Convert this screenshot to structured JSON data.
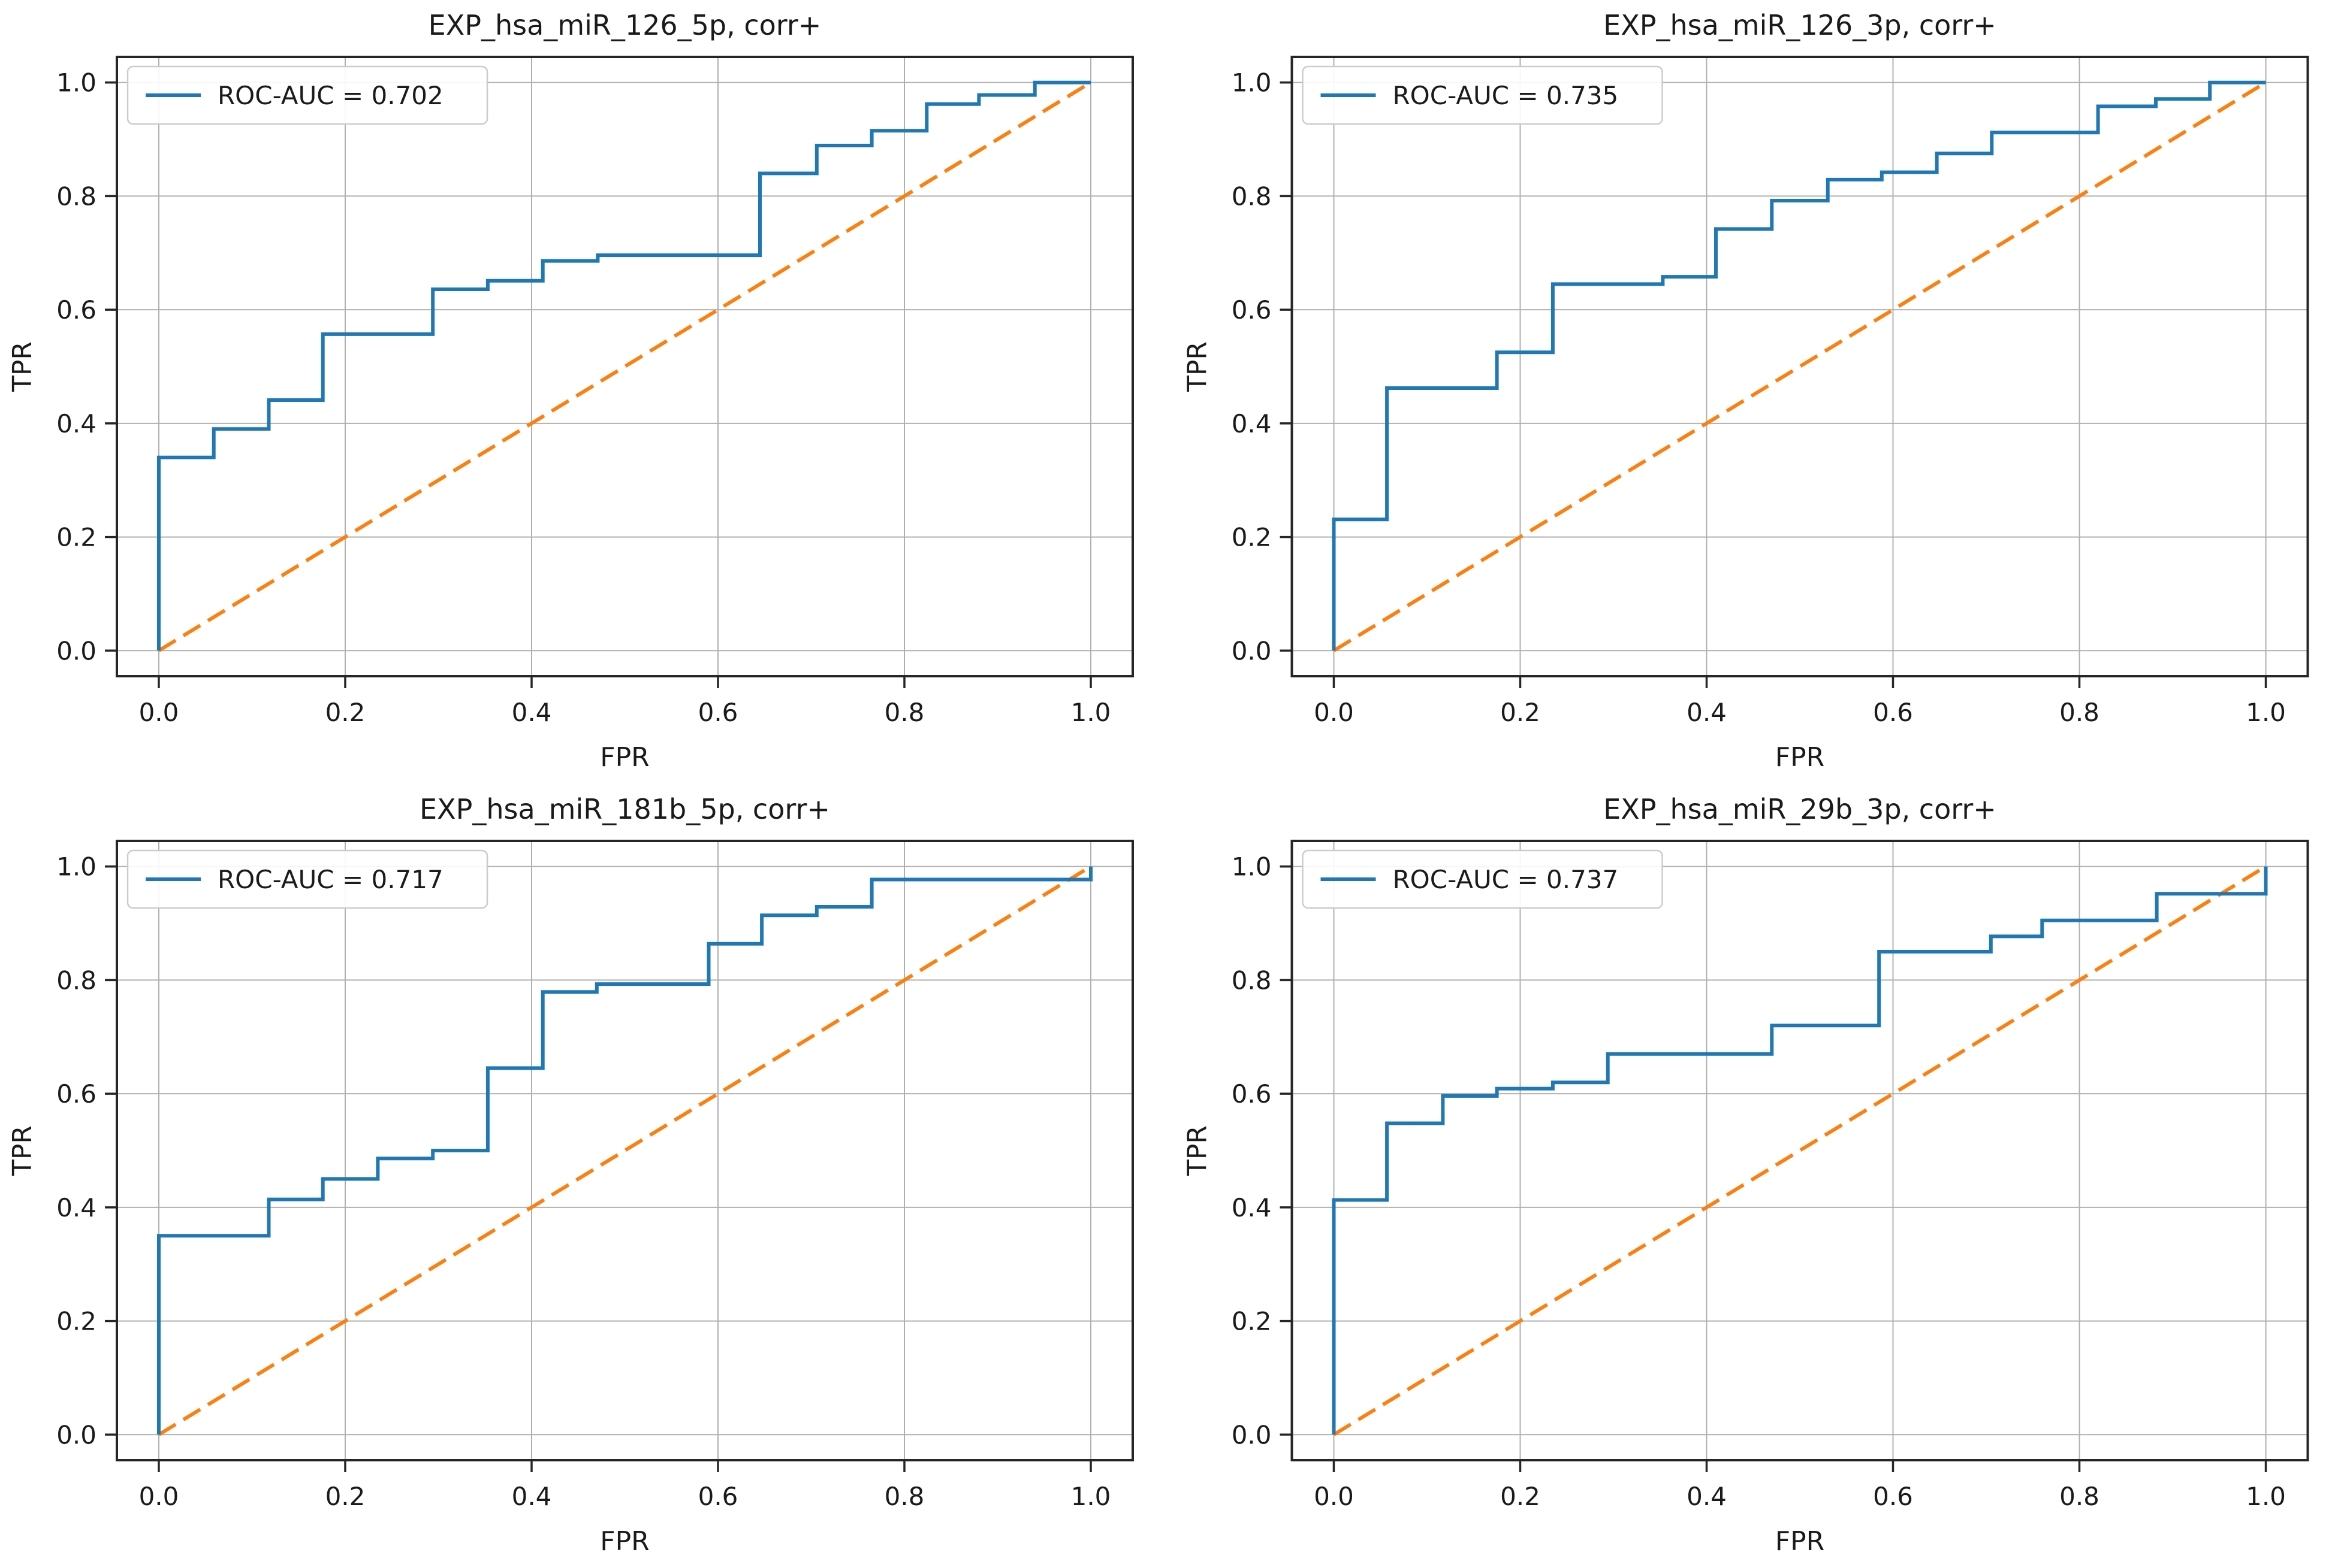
{
  "figure": {
    "background": "#ffffff",
    "grid_rows": 2,
    "grid_cols": 2
  },
  "colors": {
    "roc_curve": "#1f77b4",
    "chance_line": "#ff7f0e",
    "grid_line": "#b0b0b0",
    "spine": "#262626",
    "tick": "#262626",
    "text": "#1a1a1a",
    "legend_border": "#cccccc",
    "legend_background": "#ffffff"
  },
  "axes": {
    "xlabel": "FPR",
    "ylabel": "TPR",
    "xlim": [
      -0.045,
      1.045
    ],
    "ylim": [
      -0.045,
      1.045
    ],
    "x_ticks": [
      0,
      0.2,
      0.4,
      0.6,
      0.8,
      1
    ],
    "y_ticks": [
      0,
      0.2,
      0.4,
      0.6,
      0.8,
      1
    ],
    "x_tick_labels": [
      "0.0",
      "0.2",
      "0.4",
      "0.6",
      "0.8",
      "1.0"
    ],
    "y_tick_labels": [
      "0.0",
      "0.2",
      "0.4",
      "0.6",
      "0.8",
      "1.0"
    ],
    "grid": true
  },
  "chart_data": [
    {
      "type": "line",
      "subtype": "roc_step",
      "title": "EXP_hsa_miR_126_5p, corr+",
      "xlabel": "FPR",
      "ylabel": "TPR",
      "xlim": [
        0,
        1
      ],
      "ylim": [
        0,
        1
      ],
      "grid": true,
      "legend_position": "upper left",
      "auc": 0.702,
      "series": [
        {
          "name": "ROC-AUC = 0.702",
          "color": "#1f77b4",
          "line_style": "solid",
          "in_legend": true,
          "points": [
            [
              0,
              0
            ],
            [
              0,
              0.34
            ],
            [
              0.059,
              0.34
            ],
            [
              0.059,
              0.39
            ],
            [
              0.118,
              0.39
            ],
            [
              0.118,
              0.441
            ],
            [
              0.176,
              0.441
            ],
            [
              0.176,
              0.557
            ],
            [
              0.294,
              0.557
            ],
            [
              0.294,
              0.636
            ],
            [
              0.353,
              0.636
            ],
            [
              0.353,
              0.651
            ],
            [
              0.412,
              0.651
            ],
            [
              0.412,
              0.686
            ],
            [
              0.471,
              0.686
            ],
            [
              0.471,
              0.696
            ],
            [
              0.645,
              0.696
            ],
            [
              0.645,
              0.84
            ],
            [
              0.706,
              0.84
            ],
            [
              0.706,
              0.889
            ],
            [
              0.765,
              0.889
            ],
            [
              0.765,
              0.915
            ],
            [
              0.824,
              0.915
            ],
            [
              0.824,
              0.962
            ],
            [
              0.88,
              0.962
            ],
            [
              0.88,
              0.978
            ],
            [
              0.94,
              0.978
            ],
            [
              0.94,
              1
            ],
            [
              1,
              1
            ]
          ]
        },
        {
          "name": "chance diagonal",
          "color": "#ff7f0e",
          "line_style": "dashed",
          "in_legend": false,
          "points": [
            [
              0,
              0
            ],
            [
              1,
              1
            ]
          ]
        }
      ]
    },
    {
      "type": "line",
      "subtype": "roc_step",
      "title": "EXP_hsa_miR_126_3p, corr+",
      "xlabel": "FPR",
      "ylabel": "TPR",
      "xlim": [
        0,
        1
      ],
      "ylim": [
        0,
        1
      ],
      "grid": true,
      "legend_position": "upper left",
      "auc": 0.735,
      "series": [
        {
          "name": "ROC-AUC = 0.735",
          "color": "#1f77b4",
          "line_style": "solid",
          "in_legend": true,
          "points": [
            [
              0,
              0
            ],
            [
              0,
              0.231
            ],
            [
              0.057,
              0.231
            ],
            [
              0.057,
              0.462
            ],
            [
              0.175,
              0.462
            ],
            [
              0.175,
              0.525
            ],
            [
              0.235,
              0.525
            ],
            [
              0.235,
              0.645
            ],
            [
              0.353,
              0.645
            ],
            [
              0.353,
              0.658
            ],
            [
              0.41,
              0.658
            ],
            [
              0.41,
              0.742
            ],
            [
              0.47,
              0.742
            ],
            [
              0.47,
              0.792
            ],
            [
              0.53,
              0.792
            ],
            [
              0.53,
              0.829
            ],
            [
              0.588,
              0.829
            ],
            [
              0.588,
              0.842
            ],
            [
              0.647,
              0.842
            ],
            [
              0.647,
              0.875
            ],
            [
              0.706,
              0.875
            ],
            [
              0.706,
              0.912
            ],
            [
              0.82,
              0.912
            ],
            [
              0.82,
              0.958
            ],
            [
              0.882,
              0.958
            ],
            [
              0.882,
              0.971
            ],
            [
              0.94,
              0.971
            ],
            [
              0.94,
              1
            ],
            [
              1,
              1
            ]
          ]
        },
        {
          "name": "chance diagonal",
          "color": "#ff7f0e",
          "line_style": "dashed",
          "in_legend": false,
          "points": [
            [
              0,
              0
            ],
            [
              1,
              1
            ]
          ]
        }
      ]
    },
    {
      "type": "line",
      "subtype": "roc_step",
      "title": "EXP_hsa_miR_181b_5p, corr+",
      "xlabel": "FPR",
      "ylabel": "TPR",
      "xlim": [
        0,
        1
      ],
      "ylim": [
        0,
        1
      ],
      "grid": true,
      "legend_position": "upper left",
      "auc": 0.717,
      "series": [
        {
          "name": "ROC-AUC = 0.717",
          "color": "#1f77b4",
          "line_style": "solid",
          "in_legend": true,
          "points": [
            [
              0,
              0
            ],
            [
              0,
              0.35
            ],
            [
              0.118,
              0.35
            ],
            [
              0.118,
              0.414
            ],
            [
              0.176,
              0.414
            ],
            [
              0.176,
              0.45
            ],
            [
              0.235,
              0.45
            ],
            [
              0.235,
              0.486
            ],
            [
              0.294,
              0.486
            ],
            [
              0.294,
              0.5
            ],
            [
              0.353,
              0.5
            ],
            [
              0.353,
              0.645
            ],
            [
              0.412,
              0.645
            ],
            [
              0.412,
              0.779
            ],
            [
              0.47,
              0.779
            ],
            [
              0.47,
              0.793
            ],
            [
              0.59,
              0.793
            ],
            [
              0.59,
              0.864
            ],
            [
              0.647,
              0.864
            ],
            [
              0.647,
              0.914
            ],
            [
              0.706,
              0.914
            ],
            [
              0.706,
              0.929
            ],
            [
              0.765,
              0.929
            ],
            [
              0.765,
              0.977
            ],
            [
              1,
              0.977
            ],
            [
              1,
              1
            ]
          ]
        },
        {
          "name": "chance diagonal",
          "color": "#ff7f0e",
          "line_style": "dashed",
          "in_legend": false,
          "points": [
            [
              0,
              0
            ],
            [
              1,
              1
            ]
          ]
        }
      ]
    },
    {
      "type": "line",
      "subtype": "roc_step",
      "title": "EXP_hsa_miR_29b_3p, corr+",
      "xlabel": "FPR",
      "ylabel": "TPR",
      "xlim": [
        0,
        1
      ],
      "ylim": [
        0,
        1
      ],
      "grid": true,
      "legend_position": "upper left",
      "auc": 0.737,
      "series": [
        {
          "name": "ROC-AUC = 0.737",
          "color": "#1f77b4",
          "line_style": "solid",
          "in_legend": true,
          "points": [
            [
              0,
              0
            ],
            [
              0,
              0.413
            ],
            [
              0.057,
              0.413
            ],
            [
              0.057,
              0.548
            ],
            [
              0.117,
              0.548
            ],
            [
              0.117,
              0.596
            ],
            [
              0.175,
              0.596
            ],
            [
              0.175,
              0.609
            ],
            [
              0.235,
              0.609
            ],
            [
              0.235,
              0.62
            ],
            [
              0.294,
              0.62
            ],
            [
              0.294,
              0.67
            ],
            [
              0.47,
              0.67
            ],
            [
              0.47,
              0.72
            ],
            [
              0.585,
              0.72
            ],
            [
              0.585,
              0.85
            ],
            [
              0.705,
              0.85
            ],
            [
              0.705,
              0.877
            ],
            [
              0.76,
              0.877
            ],
            [
              0.76,
              0.905
            ],
            [
              0.883,
              0.905
            ],
            [
              0.883,
              0.952
            ],
            [
              1,
              0.952
            ],
            [
              1,
              1
            ]
          ]
        },
        {
          "name": "chance diagonal",
          "color": "#ff7f0e",
          "line_style": "dashed",
          "in_legend": false,
          "points": [
            [
              0,
              0
            ],
            [
              1,
              1
            ]
          ]
        }
      ]
    }
  ]
}
